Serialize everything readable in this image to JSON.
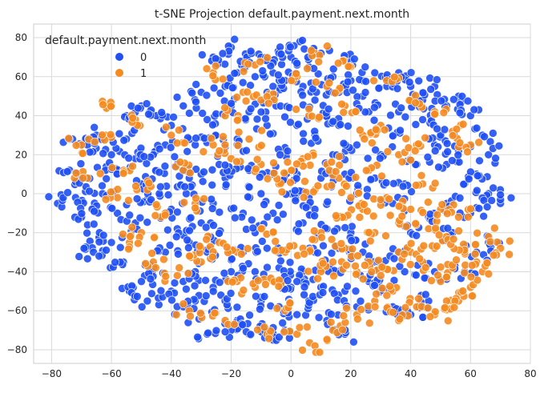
{
  "chart_data": {
    "type": "scatter",
    "title": "t-SNE Projection default.payment.next.month",
    "xlabel": "",
    "ylabel": "",
    "xlim": [
      -86,
      80
    ],
    "ylim": [
      -87,
      87
    ],
    "x_ticks": [
      -80,
      -60,
      -40,
      -20,
      0,
      20,
      40,
      60,
      80
    ],
    "y_ticks": [
      -80,
      -60,
      -40,
      -20,
      0,
      20,
      40,
      60,
      80
    ],
    "grid": true,
    "legend": {
      "title": "default.payment.next.month",
      "placement": "top-left",
      "entries": [
        {
          "label": "0",
          "color": "#1f4ff5"
        },
        {
          "label": "1",
          "color": "#f58a1f"
        }
      ]
    },
    "series": [
      {
        "name": "0",
        "color": "#1f4ff5",
        "points": [
          [
            -78,
            -5
          ],
          [
            -72,
            -2
          ],
          [
            -74,
            12
          ],
          [
            -73,
            28
          ],
          [
            -68,
            25
          ],
          [
            -65,
            30
          ],
          [
            -70,
            8
          ],
          [
            -66,
            -8
          ],
          [
            -63,
            0
          ],
          [
            -60,
            20
          ],
          [
            -58,
            10
          ],
          [
            -55,
            28
          ],
          [
            -52,
            18
          ],
          [
            -50,
            5
          ],
          [
            -48,
            -3
          ],
          [
            -45,
            12
          ],
          [
            -42,
            25
          ],
          [
            -40,
            35
          ],
          [
            -45,
            40
          ],
          [
            -50,
            45
          ],
          [
            -55,
            40
          ],
          [
            -38,
            15
          ],
          [
            -35,
            0
          ],
          [
            -30,
            10
          ],
          [
            -32,
            25
          ],
          [
            -28,
            38
          ],
          [
            -25,
            30
          ],
          [
            -20,
            45
          ],
          [
            -22,
            55
          ],
          [
            -18,
            62
          ],
          [
            -15,
            70
          ],
          [
            -12,
            60
          ],
          [
            -8,
            52
          ],
          [
            -5,
            45
          ],
          [
            -2,
            58
          ],
          [
            0,
            70
          ],
          [
            3,
            78
          ],
          [
            6,
            65
          ],
          [
            10,
            72
          ],
          [
            14,
            60
          ],
          [
            8,
            48
          ],
          [
            12,
            40
          ],
          [
            16,
            52
          ],
          [
            20,
            58
          ],
          [
            24,
            50
          ],
          [
            28,
            62
          ],
          [
            32,
            55
          ],
          [
            36,
            62
          ],
          [
            40,
            55
          ],
          [
            44,
            48
          ],
          [
            48,
            55
          ],
          [
            52,
            45
          ],
          [
            56,
            50
          ],
          [
            60,
            40
          ],
          [
            64,
            30
          ],
          [
            66,
            20
          ],
          [
            62,
            10
          ],
          [
            66,
            0
          ],
          [
            70,
            -5
          ],
          [
            58,
            5
          ],
          [
            52,
            15
          ],
          [
            48,
            25
          ],
          [
            42,
            15
          ],
          [
            38,
            5
          ],
          [
            34,
            -5
          ],
          [
            28,
            8
          ],
          [
            22,
            0
          ],
          [
            18,
            10
          ],
          [
            14,
            20
          ],
          [
            10,
            8
          ],
          [
            6,
            -2
          ],
          [
            2,
            10
          ],
          [
            -2,
            22
          ],
          [
            -6,
            10
          ],
          [
            -10,
            0
          ],
          [
            -14,
            12
          ],
          [
            -18,
            25
          ],
          [
            -22,
            8
          ],
          [
            -26,
            -5
          ],
          [
            -30,
            -15
          ],
          [
            -34,
            -25
          ],
          [
            -38,
            -18
          ],
          [
            -42,
            -30
          ],
          [
            -46,
            -38
          ],
          [
            -50,
            -45
          ],
          [
            -54,
            -50
          ],
          [
            -48,
            -55
          ],
          [
            -40,
            -50
          ],
          [
            -36,
            -58
          ],
          [
            -30,
            -62
          ],
          [
            -26,
            -48
          ],
          [
            -22,
            -55
          ],
          [
            -18,
            -65
          ],
          [
            -14,
            -72
          ],
          [
            -10,
            -68
          ],
          [
            -6,
            -75
          ],
          [
            -2,
            -70
          ],
          [
            2,
            -62
          ],
          [
            6,
            -55
          ],
          [
            10,
            -48
          ],
          [
            14,
            -40
          ],
          [
            18,
            -50
          ],
          [
            22,
            -58
          ],
          [
            26,
            -45
          ],
          [
            30,
            -38
          ],
          [
            24,
            -30
          ],
          [
            20,
            -20
          ],
          [
            16,
            -28
          ],
          [
            12,
            -18
          ],
          [
            8,
            -30
          ],
          [
            4,
            -40
          ],
          [
            0,
            -48
          ],
          [
            -4,
            -38
          ],
          [
            -8,
            -28
          ],
          [
            -12,
            -40
          ],
          [
            -16,
            -30
          ],
          [
            -20,
            -40
          ],
          [
            -24,
            -20
          ],
          [
            -28,
            -30
          ],
          [
            -32,
            -40
          ],
          [
            -36,
            -45
          ],
          [
            -10,
            -55
          ],
          [
            -4,
            -58
          ],
          [
            2,
            -45
          ],
          [
            -60,
            -25
          ],
          [
            -64,
            -20
          ],
          [
            -68,
            -28
          ],
          [
            -56,
            -35
          ],
          [
            -58,
            -10
          ],
          [
            -44,
            0
          ],
          [
            -36,
            45
          ],
          [
            -30,
            52
          ],
          [
            -26,
            70
          ],
          [
            -20,
            75
          ],
          [
            -10,
            70
          ],
          [
            -6,
            62
          ],
          [
            4,
            55
          ],
          [
            18,
            70
          ],
          [
            26,
            42
          ],
          [
            34,
            30
          ],
          [
            44,
            38
          ],
          [
            50,
            30
          ],
          [
            56,
            22
          ],
          [
            60,
            -10
          ],
          [
            52,
            -5
          ],
          [
            46,
            -12
          ],
          [
            40,
            -20
          ],
          [
            36,
            -30
          ],
          [
            30,
            -48
          ],
          [
            34,
            -58
          ],
          [
            40,
            -62
          ],
          [
            46,
            -55
          ],
          [
            38,
            -40
          ],
          [
            54,
            -20
          ],
          [
            58,
            -40
          ],
          [
            62,
            -30
          ],
          [
            66,
            -25
          ],
          [
            48,
            -40
          ],
          [
            -12,
            -20
          ],
          [
            -6,
            -10
          ],
          [
            0,
            0
          ],
          [
            4,
            -15
          ],
          [
            8,
            -8
          ],
          [
            -16,
            -10
          ],
          [
            -24,
            15
          ],
          [
            -34,
            8
          ],
          [
            -40,
            -8
          ],
          [
            -46,
            20
          ],
          [
            -62,
            12
          ],
          [
            -70,
            -12
          ],
          [
            -66,
            -30
          ],
          [
            -52,
            -15
          ],
          [
            -8,
            35
          ],
          [
            -14,
            42
          ],
          [
            2,
            35
          ],
          [
            8,
            30
          ],
          [
            16,
            35
          ],
          [
            22,
            25
          ],
          [
            30,
            20
          ],
          [
            36,
            42
          ],
          [
            -4,
            72
          ],
          [
            12,
            -65
          ],
          [
            18,
            -72
          ],
          [
            -28,
            -72
          ],
          [
            -32,
            -55
          ],
          [
            -20,
            -70
          ]
        ]
      },
      {
        "name": "1",
        "color": "#f58a1f",
        "points": [
          [
            -68,
            8
          ],
          [
            -70,
            25
          ],
          [
            -62,
            30
          ],
          [
            -56,
            12
          ],
          [
            -50,
            -20
          ],
          [
            -46,
            -35
          ],
          [
            -38,
            -42
          ],
          [
            -30,
            -35
          ],
          [
            -24,
            -25
          ],
          [
            -18,
            -30
          ],
          [
            -12,
            -48
          ],
          [
            -6,
            -45
          ],
          [
            -2,
            -30
          ],
          [
            4,
            -28
          ],
          [
            10,
            -20
          ],
          [
            14,
            -35
          ],
          [
            18,
            -28
          ],
          [
            22,
            -40
          ],
          [
            26,
            -35
          ],
          [
            30,
            -42
          ],
          [
            34,
            -50
          ],
          [
            40,
            -30
          ],
          [
            44,
            -35
          ],
          [
            48,
            -28
          ],
          [
            50,
            -45
          ],
          [
            54,
            -38
          ],
          [
            56,
            -55
          ],
          [
            60,
            -48
          ],
          [
            62,
            -35
          ],
          [
            66,
            -22
          ],
          [
            70,
            -28
          ],
          [
            64,
            -40
          ],
          [
            58,
            -30
          ],
          [
            52,
            -22
          ],
          [
            46,
            -18
          ],
          [
            40,
            -8
          ],
          [
            36,
            -15
          ],
          [
            28,
            -20
          ],
          [
            24,
            -8
          ],
          [
            20,
            -2
          ],
          [
            16,
            8
          ],
          [
            12,
            15
          ],
          [
            8,
            2
          ],
          [
            4,
            18
          ],
          [
            0,
            12
          ],
          [
            -4,
            5
          ],
          [
            -10,
            15
          ],
          [
            -14,
            28
          ],
          [
            -20,
            18
          ],
          [
            -26,
            25
          ],
          [
            -32,
            -5
          ],
          [
            -36,
            12
          ],
          [
            -42,
            -10
          ],
          [
            -48,
            2
          ],
          [
            -54,
            -25
          ],
          [
            -58,
            -2
          ],
          [
            -22,
            40
          ],
          [
            -16,
            52
          ],
          [
            -10,
            48
          ],
          [
            6,
            40
          ],
          [
            12,
            55
          ],
          [
            18,
            45
          ],
          [
            24,
            30
          ],
          [
            30,
            35
          ],
          [
            36,
            20
          ],
          [
            42,
            25
          ],
          [
            48,
            42
          ],
          [
            54,
            32
          ],
          [
            60,
            25
          ],
          [
            44,
            5
          ],
          [
            50,
            -8
          ],
          [
            56,
            -12
          ],
          [
            -26,
            62
          ],
          [
            -12,
            66
          ],
          [
            2,
            60
          ],
          [
            8,
            72
          ],
          [
            20,
            65
          ],
          [
            32,
            58
          ],
          [
            40,
            48
          ],
          [
            -40,
            30
          ],
          [
            -52,
            38
          ],
          [
            -60,
            45
          ],
          [
            -34,
            -60
          ],
          [
            -22,
            -65
          ],
          [
            2,
            -72
          ],
          [
            8,
            -78
          ],
          [
            14,
            -70
          ],
          [
            22,
            -62
          ],
          [
            28,
            -55
          ],
          [
            36,
            -65
          ],
          [
            42,
            -58
          ],
          [
            48,
            -62
          ],
          [
            52,
            -55
          ],
          [
            -2,
            -60
          ],
          [
            -8,
            -72
          ],
          [
            18,
            -12
          ],
          [
            26,
            12
          ],
          [
            32,
            -2
          ],
          [
            -30,
            -28
          ],
          [
            -18,
            -45
          ],
          [
            -6,
            -20
          ],
          [
            10,
            -40
          ]
        ]
      }
    ]
  }
}
